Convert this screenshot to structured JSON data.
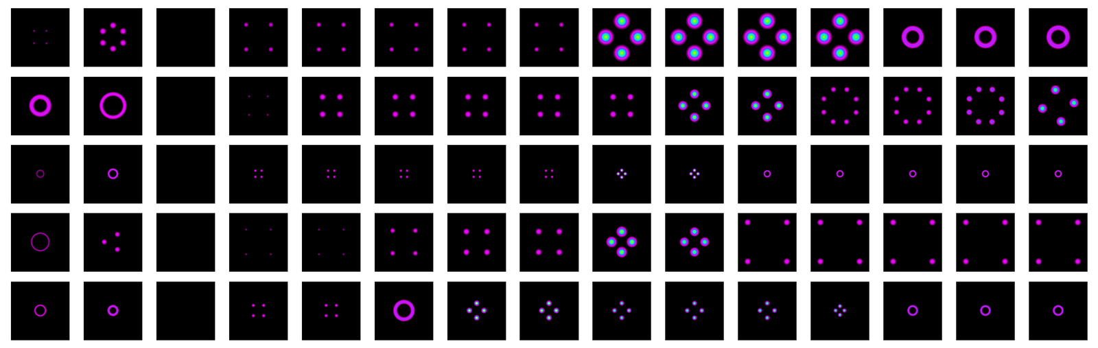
{
  "chart_data": {
    "type": "heatmap",
    "tick_labels": false,
    "zlim": [
      0,
      1.3
    ],
    "colors": [
      "#000000",
      "#ff00ff",
      "#6040ff",
      "#00e0ff",
      "#30ff40",
      "#ffff00",
      "#ffffff"
    ],
    "panels": [
      [
        {
          "shape": "spots",
          "count": 4,
          "radius": 0.3,
          "angle": 45,
          "peak": 0.12,
          "width": 0.03
        },
        {
          "shape": "spots",
          "count": 6,
          "radius": 0.4,
          "angle": 30,
          "peak": 0.3,
          "width": 0.06
        },
        {
          "shape": "empty"
        },
        {
          "shape": "spots",
          "count": 4,
          "radius": 0.6,
          "angle": 45,
          "peak": 0.2,
          "width": 0.05
        },
        {
          "shape": "spots",
          "count": 4,
          "radius": 0.6,
          "angle": 45,
          "peak": 0.22,
          "width": 0.05
        },
        {
          "shape": "spots",
          "count": 4,
          "radius": 0.6,
          "angle": 45,
          "peak": 0.22,
          "width": 0.05
        },
        {
          "shape": "spots",
          "count": 4,
          "radius": 0.6,
          "angle": 45,
          "peak": 0.22,
          "width": 0.05
        },
        {
          "shape": "spots",
          "count": 4,
          "radius": 0.6,
          "angle": 45,
          "peak": 0.22,
          "width": 0.05
        },
        {
          "shape": "spots",
          "count": 4,
          "radius": 0.55,
          "angle": 0,
          "peak": 1.0,
          "width": 0.12
        },
        {
          "shape": "spots",
          "count": 4,
          "radius": 0.55,
          "angle": 0,
          "peak": 1.0,
          "width": 0.12
        },
        {
          "shape": "spots",
          "count": 4,
          "radius": 0.55,
          "angle": 0,
          "peak": 1.0,
          "width": 0.12
        },
        {
          "shape": "spots",
          "count": 4,
          "radius": 0.55,
          "angle": 0,
          "peak": 0.95,
          "width": 0.12
        },
        {
          "shape": "ring",
          "radius": 0.3,
          "peak": 0.35,
          "width": 0.05
        },
        {
          "shape": "ring",
          "radius": 0.3,
          "peak": 0.35,
          "width": 0.05
        },
        {
          "shape": "ring",
          "radius": 0.32,
          "peak": 0.35,
          "width": 0.05
        }
      ],
      [
        {
          "shape": "ring",
          "radius": 0.3,
          "peak": 0.3,
          "width": 0.05
        },
        {
          "shape": "ring",
          "radius": 0.4,
          "peak": 0.28,
          "width": 0.04
        },
        {
          "shape": "empty"
        },
        {
          "shape": "spots",
          "count": 4,
          "radius": 0.45,
          "angle": 45,
          "peak": 0.12,
          "width": 0.03
        },
        {
          "shape": "spots",
          "count": 4,
          "radius": 0.42,
          "angle": 45,
          "peak": 0.3,
          "width": 0.06
        },
        {
          "shape": "spots",
          "count": 4,
          "radius": 0.42,
          "angle": 45,
          "peak": 0.3,
          "width": 0.06
        },
        {
          "shape": "spots",
          "count": 4,
          "radius": 0.42,
          "angle": 45,
          "peak": 0.3,
          "width": 0.06
        },
        {
          "shape": "spots",
          "count": 4,
          "radius": 0.42,
          "angle": 45,
          "peak": 0.3,
          "width": 0.06
        },
        {
          "shape": "spots",
          "count": 4,
          "radius": 0.42,
          "angle": 45,
          "peak": 0.32,
          "width": 0.06
        },
        {
          "shape": "spots",
          "count": 4,
          "radius": 0.4,
          "angle": 0,
          "peak": 1.0,
          "width": 0.07
        },
        {
          "shape": "spots",
          "count": 4,
          "radius": 0.4,
          "angle": 0,
          "peak": 1.0,
          "width": 0.07
        },
        {
          "shape": "spots",
          "count": 8,
          "radius": 0.6,
          "angle": 22,
          "peak": 0.3,
          "width": 0.05
        },
        {
          "shape": "spots",
          "count": 8,
          "radius": 0.6,
          "angle": 22,
          "peak": 0.32,
          "width": 0.05
        },
        {
          "shape": "spots",
          "count": 8,
          "radius": 0.6,
          "angle": 22,
          "peak": 0.5,
          "width": 0.05
        },
        {
          "shape": "spots",
          "count": 4,
          "radius": 0.55,
          "angle": 10,
          "peak": 0.9,
          "width": 0.07
        }
      ],
      [
        {
          "shape": "ring",
          "radius": 0.12,
          "peak": 0.12,
          "width": 0.02
        },
        {
          "shape": "ring",
          "radius": 0.15,
          "peak": 0.35,
          "width": 0.02
        },
        {
          "shape": "empty"
        },
        {
          "shape": "spots",
          "count": 4,
          "radius": 0.15,
          "angle": 45,
          "peak": 0.3,
          "width": 0.025
        },
        {
          "shape": "spots",
          "count": 4,
          "radius": 0.15,
          "angle": 45,
          "peak": 0.3,
          "width": 0.025
        },
        {
          "shape": "spots",
          "count": 4,
          "radius": 0.15,
          "angle": 45,
          "peak": 0.3,
          "width": 0.025
        },
        {
          "shape": "spots",
          "count": 4,
          "radius": 0.15,
          "angle": 45,
          "peak": 0.3,
          "width": 0.025
        },
        {
          "shape": "spots",
          "count": 4,
          "radius": 0.15,
          "angle": 45,
          "peak": 0.3,
          "width": 0.025
        },
        {
          "shape": "spots",
          "count": 4,
          "radius": 0.12,
          "angle": 0,
          "peak": 1.3,
          "width": 0.025
        },
        {
          "shape": "spots",
          "count": 4,
          "radius": 0.12,
          "angle": 0,
          "peak": 1.3,
          "width": 0.025
        },
        {
          "shape": "ring",
          "radius": 0.1,
          "peak": 0.35,
          "width": 0.015
        },
        {
          "shape": "ring",
          "radius": 0.1,
          "peak": 0.35,
          "width": 0.015
        },
        {
          "shape": "ring",
          "radius": 0.1,
          "peak": 0.35,
          "width": 0.015
        },
        {
          "shape": "ring",
          "radius": 0.1,
          "peak": 0.35,
          "width": 0.015
        },
        {
          "shape": "ring",
          "radius": 0.1,
          "peak": 0.35,
          "width": 0.015
        }
      ],
      [
        {
          "shape": "ring",
          "radius": 0.3,
          "peak": 0.15,
          "width": 0.02
        },
        {
          "shape": "spots",
          "count": 3,
          "radius": 0.3,
          "angle": 60,
          "peak": 0.3,
          "width": 0.05
        },
        {
          "shape": "empty"
        },
        {
          "shape": "spots",
          "count": 4,
          "radius": 0.6,
          "angle": 45,
          "peak": 0.12,
          "width": 0.03
        },
        {
          "shape": "spots",
          "count": 4,
          "radius": 0.6,
          "angle": 45,
          "peak": 0.12,
          "width": 0.03
        },
        {
          "shape": "spots",
          "count": 4,
          "radius": 0.55,
          "angle": 45,
          "peak": 0.25,
          "width": 0.05
        },
        {
          "shape": "spots",
          "count": 4,
          "radius": 0.5,
          "angle": 45,
          "peak": 0.3,
          "width": 0.06
        },
        {
          "shape": "spots",
          "count": 4,
          "radius": 0.5,
          "angle": 45,
          "peak": 0.3,
          "width": 0.06
        },
        {
          "shape": "spots",
          "count": 4,
          "radius": 0.35,
          "angle": 0,
          "peak": 1.0,
          "width": 0.08
        },
        {
          "shape": "spots",
          "count": 4,
          "radius": 0.35,
          "angle": 0,
          "peak": 0.9,
          "width": 0.07
        },
        {
          "shape": "spots",
          "count": 4,
          "radius": 0.95,
          "angle": 45,
          "peak": 0.3,
          "width": 0.06
        },
        {
          "shape": "spots",
          "count": 4,
          "radius": 0.95,
          "angle": 45,
          "peak": 0.3,
          "width": 0.06
        },
        {
          "shape": "spots",
          "count": 4,
          "radius": 0.95,
          "angle": 45,
          "peak": 0.3,
          "width": 0.06
        },
        {
          "shape": "spots",
          "count": 4,
          "radius": 0.95,
          "angle": 45,
          "peak": 0.3,
          "width": 0.06
        },
        {
          "shape": "spots",
          "count": 4,
          "radius": 0.95,
          "angle": 45,
          "peak": 0.3,
          "width": 0.06
        }
      ],
      [
        {
          "shape": "ring",
          "radius": 0.18,
          "peak": 0.2,
          "width": 0.02
        },
        {
          "shape": "ring",
          "radius": 0.15,
          "peak": 0.35,
          "width": 0.025
        },
        {
          "shape": "empty"
        },
        {
          "shape": "spots",
          "count": 4,
          "radius": 0.25,
          "angle": 45,
          "peak": 0.25,
          "width": 0.035
        },
        {
          "shape": "spots",
          "count": 4,
          "radius": 0.25,
          "angle": 45,
          "peak": 0.25,
          "width": 0.035
        },
        {
          "shape": "ring",
          "radius": 0.3,
          "peak": 0.35,
          "width": 0.04
        },
        {
          "shape": "spots",
          "count": 4,
          "radius": 0.25,
          "angle": 0,
          "peak": 1.2,
          "width": 0.04
        },
        {
          "shape": "spots",
          "count": 4,
          "radius": 0.25,
          "angle": 0,
          "peak": 1.2,
          "width": 0.04
        },
        {
          "shape": "spots",
          "count": 4,
          "radius": 0.25,
          "angle": 0,
          "peak": 1.0,
          "width": 0.035
        },
        {
          "shape": "spots",
          "count": 4,
          "radius": 0.25,
          "angle": 0,
          "peak": 1.0,
          "width": 0.035
        },
        {
          "shape": "spots",
          "count": 4,
          "radius": 0.25,
          "angle": 0,
          "peak": 1.0,
          "width": 0.035
        },
        {
          "shape": "spots",
          "count": 4,
          "radius": 0.15,
          "angle": 0,
          "peak": 1.0,
          "width": 0.03
        },
        {
          "shape": "ring",
          "radius": 0.15,
          "peak": 0.4,
          "width": 0.02
        },
        {
          "shape": "ring",
          "radius": 0.15,
          "peak": 0.4,
          "width": 0.02
        },
        {
          "shape": "ring",
          "radius": 0.15,
          "peak": 0.4,
          "width": 0.02
        }
      ]
    ]
  }
}
